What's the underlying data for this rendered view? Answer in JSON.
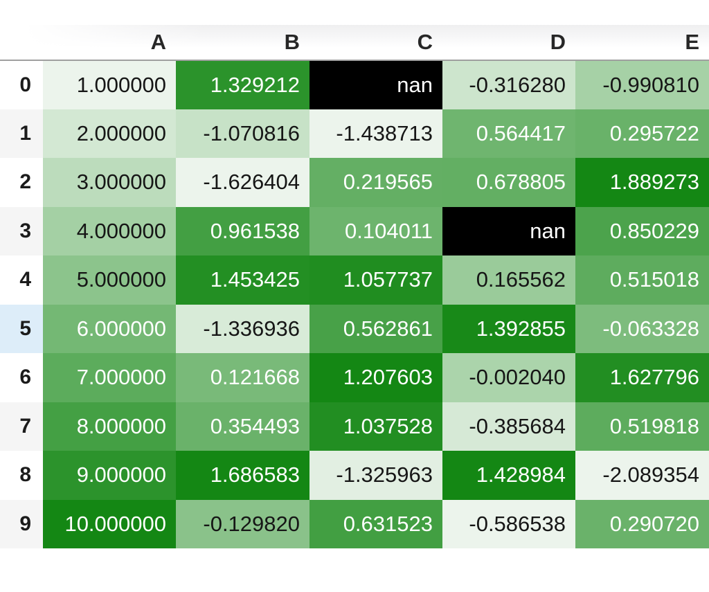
{
  "table": {
    "index_header": "",
    "columns": [
      "A",
      "B",
      "C",
      "D",
      "E"
    ],
    "rows": [
      {
        "index": "0",
        "index_bg": "#ffffff",
        "cells": [
          {
            "text": "1.000000",
            "bg": "#ecf4ec",
            "light_text": false
          },
          {
            "text": "1.329212",
            "bg": "#2b932b",
            "light_text": true
          },
          {
            "text": "nan",
            "bg": "#000000",
            "light_text": true
          },
          {
            "text": "-0.316280",
            "bg": "#cde5cd",
            "light_text": false
          },
          {
            "text": "-0.990810",
            "bg": "#a6d1a6",
            "light_text": false
          }
        ]
      },
      {
        "index": "1",
        "index_bg": "#f5f5f5",
        "cells": [
          {
            "text": "2.000000",
            "bg": "#d3e8d3",
            "light_text": false
          },
          {
            "text": "-1.070816",
            "bg": "#c7e2c7",
            "light_text": false
          },
          {
            "text": "-1.438713",
            "bg": "#ecf4ec",
            "light_text": false
          },
          {
            "text": "0.564417",
            "bg": "#6fb56f",
            "light_text": true
          },
          {
            "text": "0.295722",
            "bg": "#69b269",
            "light_text": true
          }
        ]
      },
      {
        "index": "2",
        "index_bg": "#ffffff",
        "cells": [
          {
            "text": "3.000000",
            "bg": "#bcdcbc",
            "light_text": false
          },
          {
            "text": "-1.626404",
            "bg": "#ecf4ec",
            "light_text": false
          },
          {
            "text": "0.219565",
            "bg": "#64af64",
            "light_text": true
          },
          {
            "text": "0.678805",
            "bg": "#63af63",
            "light_text": true
          },
          {
            "text": "1.889273",
            "bg": "#148714",
            "light_text": true
          }
        ]
      },
      {
        "index": "3",
        "index_bg": "#f5f5f5",
        "cells": [
          {
            "text": "4.000000",
            "bg": "#a4d0a4",
            "light_text": false
          },
          {
            "text": "0.961538",
            "bg": "#439f43",
            "light_text": true
          },
          {
            "text": "0.104011",
            "bg": "#6db46d",
            "light_text": true
          },
          {
            "text": "nan",
            "bg": "#000000",
            "light_text": true
          },
          {
            "text": "0.850229",
            "bg": "#4ca34c",
            "light_text": true
          }
        ]
      },
      {
        "index": "4",
        "index_bg": "#ffffff",
        "cells": [
          {
            "text": "5.000000",
            "bg": "#8cc48c",
            "light_text": false
          },
          {
            "text": "1.453425",
            "bg": "#238f23",
            "light_text": true
          },
          {
            "text": "1.057737",
            "bg": "#208d20",
            "light_text": true
          },
          {
            "text": "0.165562",
            "bg": "#9acb9a",
            "light_text": false
          },
          {
            "text": "0.515018",
            "bg": "#5eac5e",
            "light_text": true
          }
        ]
      },
      {
        "index": "5",
        "index_bg": "#ddedf9",
        "cells": [
          {
            "text": "6.000000",
            "bg": "#74b874",
            "light_text": true
          },
          {
            "text": "-1.336936",
            "bg": "#d8ebd8",
            "light_text": false
          },
          {
            "text": "0.562861",
            "bg": "#48a148",
            "light_text": true
          },
          {
            "text": "1.392855",
            "bg": "#188918",
            "light_text": true
          },
          {
            "text": "-0.063328",
            "bg": "#7dbc7d",
            "light_text": true
          }
        ]
      },
      {
        "index": "6",
        "index_bg": "#ffffff",
        "cells": [
          {
            "text": "7.000000",
            "bg": "#5cac5c",
            "light_text": true
          },
          {
            "text": "0.121668",
            "bg": "#79ba79",
            "light_text": true
          },
          {
            "text": "1.207603",
            "bg": "#148714",
            "light_text": true
          },
          {
            "text": "-0.002040",
            "bg": "#abd4ab",
            "light_text": false
          },
          {
            "text": "1.627796",
            "bg": "#228e22",
            "light_text": true
          }
        ]
      },
      {
        "index": "7",
        "index_bg": "#f5f5f5",
        "cells": [
          {
            "text": "8.000000",
            "bg": "#44a044",
            "light_text": true
          },
          {
            "text": "0.354493",
            "bg": "#6ab26a",
            "light_text": true
          },
          {
            "text": "1.037528",
            "bg": "#228e22",
            "light_text": true
          },
          {
            "text": "-0.385684",
            "bg": "#d6e9d6",
            "light_text": false
          },
          {
            "text": "0.519818",
            "bg": "#5dac5d",
            "light_text": true
          }
        ]
      },
      {
        "index": "8",
        "index_bg": "#ffffff",
        "cells": [
          {
            "text": "9.000000",
            "bg": "#2c932c",
            "light_text": true
          },
          {
            "text": "1.686583",
            "bg": "#148714",
            "light_text": true
          },
          {
            "text": "-1.325963",
            "bg": "#e2efe2",
            "light_text": false
          },
          {
            "text": "1.428984",
            "bg": "#148714",
            "light_text": true
          },
          {
            "text": "-2.089354",
            "bg": "#ecf4ec",
            "light_text": false
          }
        ]
      },
      {
        "index": "9",
        "index_bg": "#f5f5f5",
        "cells": [
          {
            "text": "10.000000",
            "bg": "#148714",
            "light_text": true
          },
          {
            "text": "-0.129820",
            "bg": "#8ac28a",
            "light_text": false
          },
          {
            "text": "0.631523",
            "bg": "#429f42",
            "light_text": true
          },
          {
            "text": "-0.586538",
            "bg": "#ecf4ec",
            "light_text": false
          },
          {
            "text": "0.290720",
            "bg": "#6ab26a",
            "light_text": true
          }
        ]
      }
    ]
  },
  "style": {
    "text_dark": "#161616",
    "text_light": "#ffffff",
    "header_border": "#9f9f9f",
    "index_stripe_bg": "#f5f5f5",
    "index_plain_bg": "#ffffff",
    "index_highlight_bg": "#ddedf9",
    "nan_bg": "#000000",
    "gradient_dark": "#148714",
    "gradient_light": "#ecf4ec"
  }
}
